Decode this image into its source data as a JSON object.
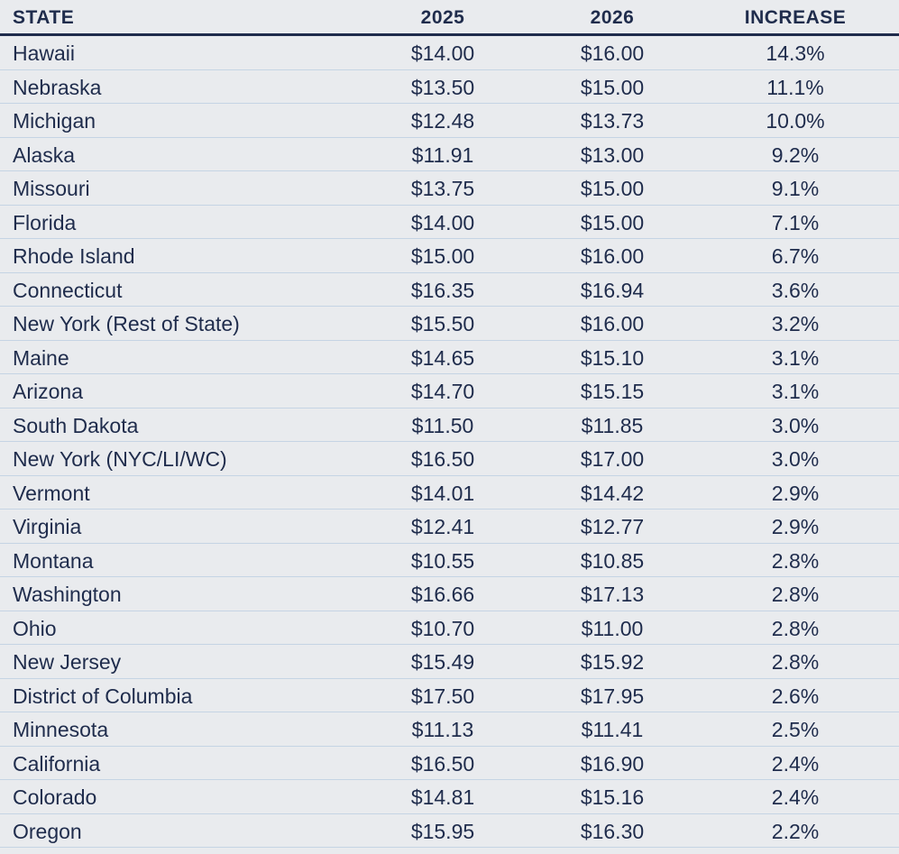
{
  "header": {
    "state": "STATE",
    "y2025": "2025",
    "y2026": "2026",
    "increase": "INCREASE"
  },
  "rows": [
    {
      "state": "Hawaii",
      "y2025": "$14.00",
      "y2026": "$16.00",
      "increase": "14.3%"
    },
    {
      "state": "Nebraska",
      "y2025": "$13.50",
      "y2026": "$15.00",
      "increase": "11.1%"
    },
    {
      "state": "Michigan",
      "y2025": "$12.48",
      "y2026": "$13.73",
      "increase": "10.0%"
    },
    {
      "state": "Alaska",
      "y2025": "$11.91",
      "y2026": "$13.00",
      "increase": "9.2%"
    },
    {
      "state": "Missouri",
      "y2025": "$13.75",
      "y2026": "$15.00",
      "increase": "9.1%"
    },
    {
      "state": "Florida",
      "y2025": "$14.00",
      "y2026": "$15.00",
      "increase": "7.1%"
    },
    {
      "state": "Rhode Island",
      "y2025": "$15.00",
      "y2026": "$16.00",
      "increase": "6.7%"
    },
    {
      "state": "Connecticut",
      "y2025": "$16.35",
      "y2026": "$16.94",
      "increase": "3.6%"
    },
    {
      "state": "New York (Rest of State)",
      "y2025": "$15.50",
      "y2026": "$16.00",
      "increase": "3.2%"
    },
    {
      "state": "Maine",
      "y2025": "$14.65",
      "y2026": "$15.10",
      "increase": "3.1%"
    },
    {
      "state": "Arizona",
      "y2025": "$14.70",
      "y2026": "$15.15",
      "increase": "3.1%"
    },
    {
      "state": "South Dakota",
      "y2025": "$11.50",
      "y2026": "$11.85",
      "increase": "3.0%"
    },
    {
      "state": "New York (NYC/LI/WC)",
      "y2025": "$16.50",
      "y2026": "$17.00",
      "increase": "3.0%"
    },
    {
      "state": "Vermont",
      "y2025": "$14.01",
      "y2026": "$14.42",
      "increase": "2.9%"
    },
    {
      "state": "Virginia",
      "y2025": "$12.41",
      "y2026": "$12.77",
      "increase": "2.9%"
    },
    {
      "state": "Montana",
      "y2025": "$10.55",
      "y2026": "$10.85",
      "increase": "2.8%"
    },
    {
      "state": "Washington",
      "y2025": "$16.66",
      "y2026": "$17.13",
      "increase": "2.8%"
    },
    {
      "state": "Ohio",
      "y2025": "$10.70",
      "y2026": "$11.00",
      "increase": "2.8%"
    },
    {
      "state": "New Jersey",
      "y2025": "$15.49",
      "y2026": "$15.92",
      "increase": "2.8%"
    },
    {
      "state": "District of Columbia",
      "y2025": "$17.50",
      "y2026": "$17.95",
      "increase": "2.6%"
    },
    {
      "state": "Minnesota",
      "y2025": "$11.13",
      "y2026": "$11.41",
      "increase": "2.5%"
    },
    {
      "state": "California",
      "y2025": "$16.50",
      "y2026": "$16.90",
      "increase": "2.4%"
    },
    {
      "state": "Colorado",
      "y2025": "$14.81",
      "y2026": "$15.16",
      "increase": "2.4%"
    },
    {
      "state": "Oregon",
      "y2025": "$15.95",
      "y2026": "$16.30",
      "increase": "2.2%"
    }
  ]
}
